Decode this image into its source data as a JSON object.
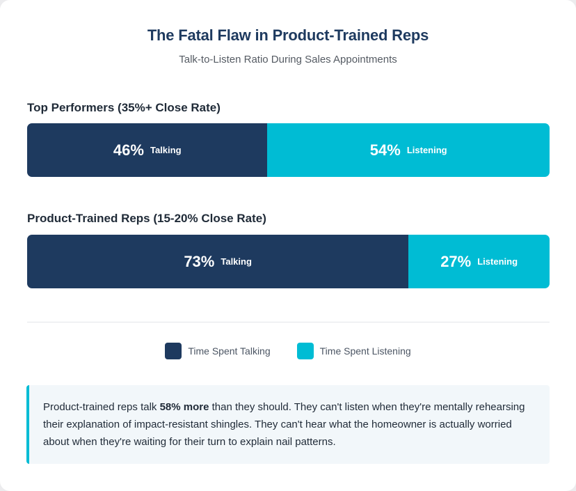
{
  "chart_data": {
    "type": "bar",
    "orientation": "horizontal",
    "stacked": true,
    "normalized": true,
    "title": "The Fatal Flaw in Product-Trained Reps",
    "subtitle": "Talk-to-Listen Ratio During Sales Appointments",
    "categories": [
      "Top Performers (35%+ Close Rate)",
      "Product-Trained Reps (15-20% Close Rate)"
    ],
    "series": [
      {
        "name": "Time Spent Talking",
        "short_label": "Talking",
        "values": [
          46,
          73
        ],
        "color": "#1e3a5f"
      },
      {
        "name": "Time Spent Listening",
        "short_label": "Listening",
        "values": [
          54,
          27
        ],
        "color": "#00bcd4"
      }
    ],
    "xlim": [
      0,
      100
    ],
    "grid": false,
    "legend_position": "bottom-center"
  },
  "note": {
    "before": "Product-trained reps talk ",
    "emphasis": "58% more",
    "after": " than they should. They can't listen when they're mentally rehearsing their explanation of impact-resistant shingles. They can't hear what the homeowner is actually worried about when they're waiting for their turn to explain nail patterns."
  }
}
